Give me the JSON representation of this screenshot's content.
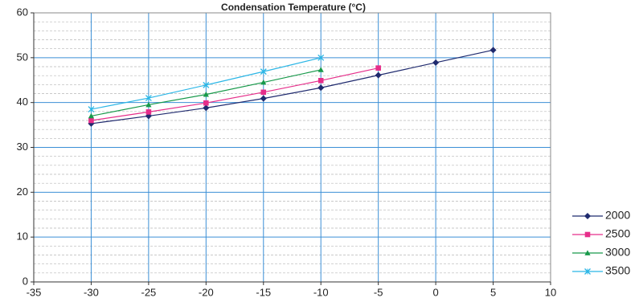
{
  "chart_data": {
    "type": "line",
    "title": "Condensation Temperature (°C)",
    "xlabel": "",
    "ylabel": "",
    "xlim": [
      -35,
      10
    ],
    "ylim": [
      0,
      60
    ],
    "x_ticks": [
      -35,
      -30,
      -25,
      -20,
      -15,
      -10,
      -5,
      0,
      5,
      10
    ],
    "y_ticks": [
      0,
      10,
      20,
      30,
      40,
      50,
      60
    ],
    "grid": {
      "major": true,
      "minor_y": true
    },
    "legend_position": "right",
    "series": [
      {
        "name": "2000",
        "color": "#1f2a6e",
        "marker": "diamond",
        "x": [
          -30,
          -25,
          -20,
          -15,
          -10,
          -5,
          0,
          5
        ],
        "y": [
          35.3,
          37.0,
          38.8,
          40.9,
          43.3,
          46.1,
          48.9,
          51.7
        ]
      },
      {
        "name": "2500",
        "color": "#e62e8a",
        "marker": "square",
        "x": [
          -30,
          -25,
          -20,
          -15,
          -10,
          -5
        ],
        "y": [
          36.0,
          37.9,
          39.9,
          42.3,
          44.9,
          47.7
        ]
      },
      {
        "name": "3000",
        "color": "#17994a",
        "marker": "triangle",
        "x": [
          -30,
          -25,
          -20,
          -15,
          -10
        ],
        "y": [
          37.0,
          39.5,
          41.8,
          44.5,
          47.3
        ]
      },
      {
        "name": "3500",
        "color": "#2bb6e6",
        "marker": "x",
        "x": [
          -30,
          -25,
          -20,
          -15,
          -10
        ],
        "y": [
          38.5,
          41.0,
          43.9,
          46.9,
          50.0
        ]
      }
    ]
  }
}
